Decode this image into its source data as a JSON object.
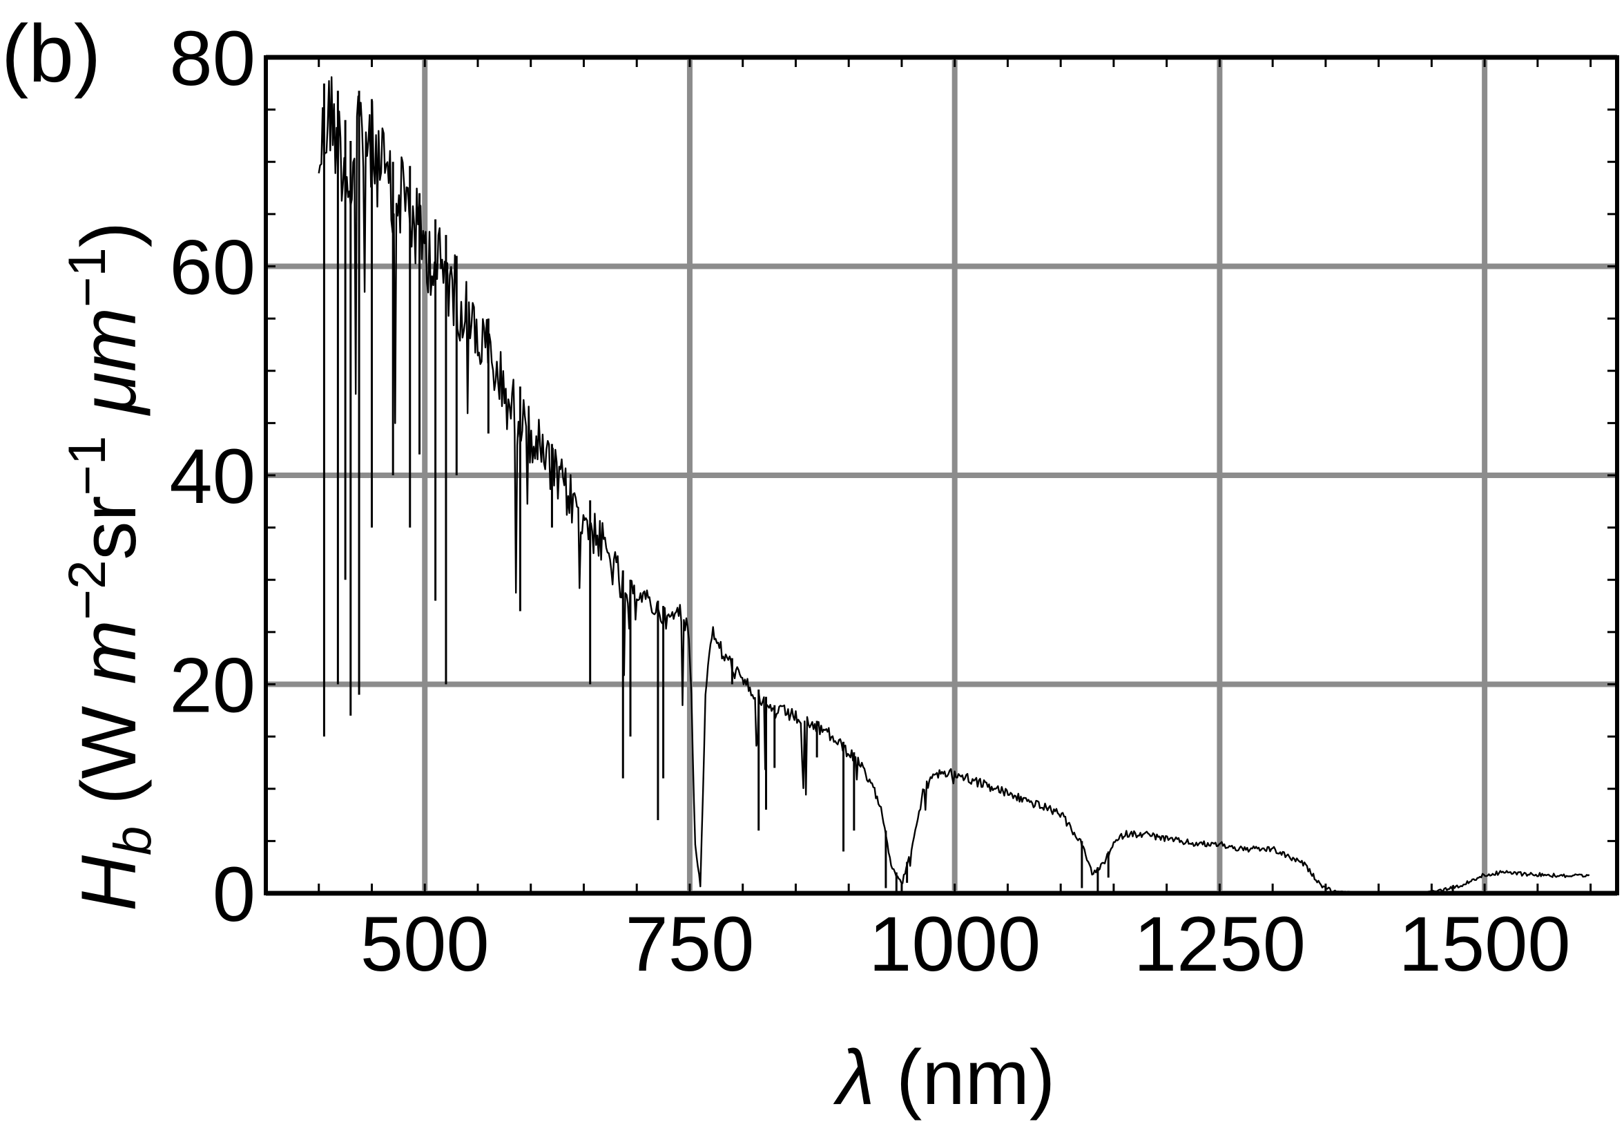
{
  "panel_label": "(b)",
  "chart_data": {
    "type": "line",
    "xlabel": {
      "symbol": "λ",
      "unit": " (nm)"
    },
    "ylabel": {
      "symbol": "H",
      "subscript": "b",
      "unit_parts": [
        {
          "text": " (W ",
          "style": "normal"
        },
        {
          "text": "m",
          "style": "italic"
        },
        {
          "text": "−2",
          "style": "sup"
        },
        {
          "text": "sr",
          "style": "normal"
        },
        {
          "text": "−1",
          "style": "sup"
        },
        {
          "text": " ",
          "style": "normal"
        },
        {
          "text": "μm",
          "style": "italic"
        },
        {
          "text": "−1",
          "style": "sup"
        },
        {
          "text": ")",
          "style": "normal"
        }
      ]
    },
    "xlim": [
      350,
      1625
    ],
    "ylim": [
      0,
      80
    ],
    "xticks": [
      500,
      750,
      1000,
      1250,
      1500
    ],
    "xtick_labels": [
      "500",
      "750",
      "1000",
      "1250",
      "1500"
    ],
    "yticks": [
      0,
      20,
      40,
      60,
      80
    ],
    "ytick_labels": [
      "0",
      "20",
      "40",
      "60",
      "80"
    ],
    "grid": true,
    "grid_color": "#8c8c8c",
    "line_color": "#000000",
    "series": [
      {
        "values_note_free": true,
        "x": [
          400,
          410,
          420,
          430,
          440,
          450,
          460,
          470,
          480,
          490,
          500,
          520,
          540,
          560,
          580,
          600,
          620,
          640,
          660,
          680,
          690,
          700,
          710,
          720,
          730,
          740,
          750,
          755,
          760,
          765,
          770,
          780,
          800,
          810,
          820,
          830,
          840,
          860,
          880,
          900,
          910,
          920,
          930,
          940,
          950,
          960,
          970,
          980,
          1000,
          1050,
          1100,
          1120,
          1130,
          1140,
          1150,
          1160,
          1180,
          1200,
          1230,
          1250,
          1270,
          1300,
          1330,
          1345,
          1360,
          1400,
          1420,
          1440,
          1460,
          1480,
          1500,
          1520,
          1550,
          1600
        ],
        "y": [
          75,
          80,
          76,
          72,
          78,
          76,
          74,
          70,
          72,
          68,
          66,
          63,
          59,
          55,
          50,
          47,
          43,
          40,
          37,
          33,
          30,
          30,
          29,
          28,
          27,
          28,
          26,
          5,
          1,
          20,
          26,
          24,
          21,
          20,
          19,
          18,
          18,
          17,
          16,
          14,
          13,
          11,
          9,
          3,
          1,
          5,
          10,
          12,
          12,
          10,
          8,
          5,
          2,
          3,
          5,
          6,
          6,
          5.5,
          5,
          5,
          4.5,
          4.5,
          3,
          1,
          0.2,
          0,
          0,
          0,
          0.5,
          1,
          2,
          2.2,
          2,
          1.8
        ]
      }
    ],
    "dips": [
      {
        "x": 405,
        "y": 15
      },
      {
        "x": 418,
        "y": 20
      },
      {
        "x": 425,
        "y": 30
      },
      {
        "x": 430,
        "y": 17
      },
      {
        "x": 438,
        "y": 19
      },
      {
        "x": 450,
        "y": 35
      },
      {
        "x": 470,
        "y": 40
      },
      {
        "x": 486,
        "y": 35
      },
      {
        "x": 495,
        "y": 42
      },
      {
        "x": 510,
        "y": 28
      },
      {
        "x": 520,
        "y": 20
      },
      {
        "x": 530,
        "y": 40
      },
      {
        "x": 560,
        "y": 44
      },
      {
        "x": 590,
        "y": 27
      },
      {
        "x": 620,
        "y": 35
      },
      {
        "x": 656,
        "y": 20
      },
      {
        "x": 687,
        "y": 11
      },
      {
        "x": 694,
        "y": 15
      },
      {
        "x": 720,
        "y": 7
      },
      {
        "x": 725,
        "y": 11
      },
      {
        "x": 760,
        "y": 1
      },
      {
        "x": 790,
        "y": 20
      },
      {
        "x": 815,
        "y": 6
      },
      {
        "x": 822,
        "y": 8
      },
      {
        "x": 830,
        "y": 12
      },
      {
        "x": 870,
        "y": 13
      },
      {
        "x": 895,
        "y": 4
      },
      {
        "x": 905,
        "y": 6
      },
      {
        "x": 935,
        "y": 0.5
      },
      {
        "x": 945,
        "y": 0
      },
      {
        "x": 955,
        "y": 1
      },
      {
        "x": 1120,
        "y": 0.5
      },
      {
        "x": 1135,
        "y": 0
      },
      {
        "x": 1145,
        "y": 1.5
      },
      {
        "x": 1350,
        "y": 0
      },
      {
        "x": 1470,
        "y": 0
      }
    ]
  }
}
